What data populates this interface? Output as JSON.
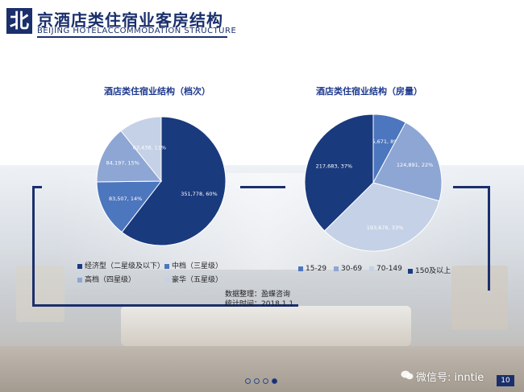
{
  "header": {
    "logo_char": "北",
    "title_cn": "京酒店类住宿业客房结构",
    "title_en": "BEIJING HOTELACCOMMODATION STRUCTURE"
  },
  "chart_data": [
    {
      "type": "pie",
      "title": "酒店类住宿业结构（档次）",
      "slices": [
        {
          "name": "经济型（二星级及以下）",
          "value": 351778,
          "label": "351,778, 60%",
          "color": "#1a3a7e"
        },
        {
          "name": "中档（三星级）",
          "value": 83507,
          "label": "83,507, 14%",
          "color": "#4c76bd"
        },
        {
          "name": "高档（四星级）",
          "value": 84197,
          "label": "84,197, 15%",
          "color": "#8ea6d3"
        },
        {
          "name": "豪华（五星级）",
          "value": 62438,
          "label": "62,438, 11%",
          "color": "#c5d1e6"
        }
      ],
      "legend_position": "bottom"
    },
    {
      "type": "pie",
      "title": "酒店类住宿业结构（房量）",
      "slices": [
        {
          "name": "15-29",
          "value": 45671,
          "label": "45,671, 8%",
          "color": "#4c76bd"
        },
        {
          "name": "30-69",
          "value": 124891,
          "label": "124,891, 22%",
          "color": "#8ea6d3"
        },
        {
          "name": "70-149",
          "value": 193676,
          "label": "193,676, 33%",
          "color": "#c5d1e6"
        },
        {
          "name": "150及以上",
          "value": 217683,
          "label": "217,683, 37%",
          "color": "#1a3a7e"
        }
      ],
      "legend_position": "bottom"
    }
  ],
  "notes": {
    "source": "数据整理：盈蝶咨询",
    "time": "统计时间：2018.1.1"
  },
  "pagination": {
    "count": 4,
    "active_index": 3
  },
  "watermark": "微信号: inntie",
  "page_number": "10"
}
